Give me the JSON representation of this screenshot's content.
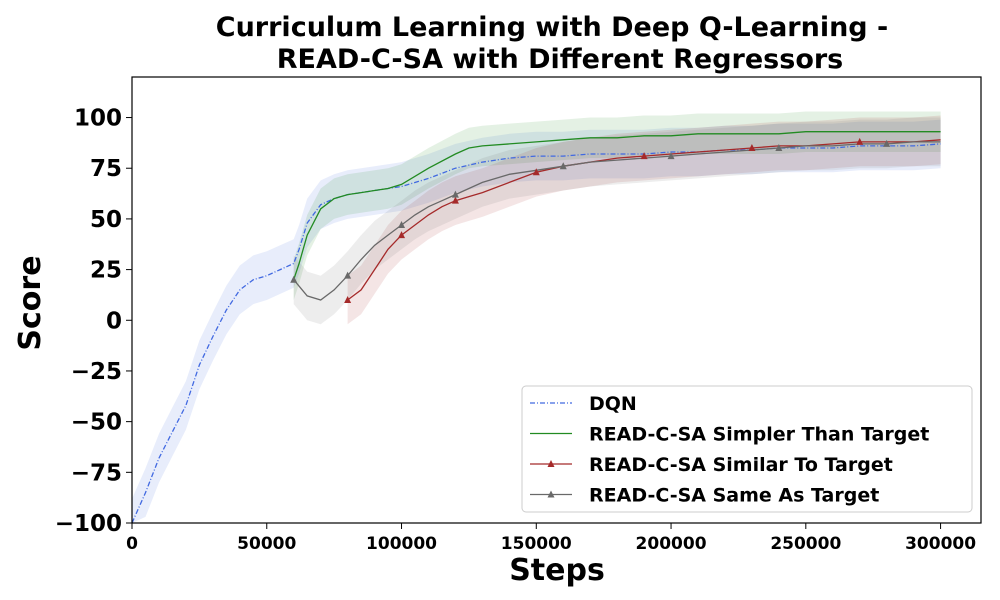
{
  "chart_data": {
    "type": "line",
    "title_lines": [
      "Curriculum Learning with Deep Q-Learning -",
      "READ-C-SA with Different Regressors"
    ],
    "xlabel": "Steps",
    "ylabel": "Score",
    "xlim": [
      0,
      315000
    ],
    "ylim": [
      -100,
      120
    ],
    "xticks": [
      0,
      50000,
      100000,
      150000,
      200000,
      250000,
      300000
    ],
    "yticks": [
      -100,
      -75,
      -50,
      -25,
      0,
      25,
      50,
      75,
      100
    ],
    "xtick_labels": [
      "0",
      "50000",
      "100000",
      "150000",
      "200000",
      "250000",
      "300000"
    ],
    "ytick_labels": [
      "−100",
      "−75",
      "−50",
      "−25",
      "0",
      "25",
      "50",
      "75",
      "100"
    ],
    "grid": false,
    "legend_position": "lower-right",
    "series": [
      {
        "name": "DQN",
        "color": "#4169e1",
        "style": "dashdot",
        "marker": "none",
        "band_width": 12,
        "points": [
          [
            0,
            -100
          ],
          [
            5000,
            -85
          ],
          [
            10000,
            -68
          ],
          [
            15000,
            -55
          ],
          [
            20000,
            -42
          ],
          [
            25000,
            -22
          ],
          [
            30000,
            -8
          ],
          [
            35000,
            5
          ],
          [
            40000,
            15
          ],
          [
            45000,
            20
          ],
          [
            50000,
            22
          ],
          [
            55000,
            25
          ],
          [
            60000,
            28
          ],
          [
            62000,
            35
          ],
          [
            65000,
            48
          ],
          [
            70000,
            57
          ],
          [
            75000,
            60
          ],
          [
            80000,
            62
          ],
          [
            85000,
            63
          ],
          [
            90000,
            64
          ],
          [
            95000,
            65
          ],
          [
            100000,
            66
          ],
          [
            110000,
            70
          ],
          [
            120000,
            75
          ],
          [
            130000,
            78
          ],
          [
            140000,
            80
          ],
          [
            150000,
            81
          ],
          [
            160000,
            81
          ],
          [
            170000,
            82
          ],
          [
            180000,
            82
          ],
          [
            190000,
            82
          ],
          [
            200000,
            83
          ],
          [
            210000,
            83
          ],
          [
            220000,
            84
          ],
          [
            230000,
            84
          ],
          [
            240000,
            85
          ],
          [
            250000,
            85
          ],
          [
            260000,
            85
          ],
          [
            270000,
            86
          ],
          [
            280000,
            86
          ],
          [
            290000,
            86
          ],
          [
            300000,
            87
          ]
        ]
      },
      {
        "name": "READ-C-SA Simpler Than Target",
        "color": "#228b22",
        "style": "solid",
        "marker": "none",
        "band_width": 10,
        "points": [
          [
            60000,
            20
          ],
          [
            62000,
            28
          ],
          [
            65000,
            42
          ],
          [
            70000,
            55
          ],
          [
            75000,
            60
          ],
          [
            80000,
            62
          ],
          [
            85000,
            63
          ],
          [
            90000,
            64
          ],
          [
            95000,
            65
          ],
          [
            100000,
            67
          ],
          [
            110000,
            75
          ],
          [
            120000,
            82
          ],
          [
            125000,
            85
          ],
          [
            130000,
            86
          ],
          [
            140000,
            87
          ],
          [
            150000,
            88
          ],
          [
            160000,
            89
          ],
          [
            170000,
            90
          ],
          [
            180000,
            90
          ],
          [
            190000,
            91
          ],
          [
            200000,
            91
          ],
          [
            210000,
            92
          ],
          [
            220000,
            92
          ],
          [
            230000,
            92
          ],
          [
            240000,
            92
          ],
          [
            250000,
            93
          ],
          [
            260000,
            93
          ],
          [
            270000,
            93
          ],
          [
            280000,
            93
          ],
          [
            290000,
            93
          ],
          [
            300000,
            93
          ]
        ]
      },
      {
        "name": "READ-C-SA Similar To Target",
        "color": "#a52a2a",
        "style": "solid",
        "marker": "triangle",
        "band_width": 12,
        "points": [
          [
            80000,
            10
          ],
          [
            85000,
            15
          ],
          [
            90000,
            25
          ],
          [
            95000,
            35
          ],
          [
            100000,
            42
          ],
          [
            105000,
            47
          ],
          [
            110000,
            52
          ],
          [
            115000,
            56
          ],
          [
            120000,
            59
          ],
          [
            125000,
            61
          ],
          [
            130000,
            63
          ],
          [
            140000,
            68
          ],
          [
            150000,
            73
          ],
          [
            160000,
            76
          ],
          [
            170000,
            78
          ],
          [
            180000,
            80
          ],
          [
            190000,
            81
          ],
          [
            200000,
            82
          ],
          [
            210000,
            83
          ],
          [
            220000,
            84
          ],
          [
            230000,
            85
          ],
          [
            240000,
            86
          ],
          [
            250000,
            86
          ],
          [
            260000,
            87
          ],
          [
            270000,
            88
          ],
          [
            280000,
            88
          ],
          [
            290000,
            88
          ],
          [
            300000,
            89
          ]
        ]
      },
      {
        "name": "READ-C-SA Same As Target",
        "color": "#696969",
        "style": "solid",
        "marker": "triangle",
        "band_width": 12,
        "points": [
          [
            60000,
            20
          ],
          [
            65000,
            12
          ],
          [
            70000,
            10
          ],
          [
            75000,
            15
          ],
          [
            80000,
            22
          ],
          [
            85000,
            30
          ],
          [
            90000,
            37
          ],
          [
            95000,
            42
          ],
          [
            100000,
            47
          ],
          [
            105000,
            52
          ],
          [
            110000,
            56
          ],
          [
            115000,
            59
          ],
          [
            120000,
            62
          ],
          [
            130000,
            68
          ],
          [
            140000,
            72
          ],
          [
            150000,
            74
          ],
          [
            160000,
            76
          ],
          [
            170000,
            78
          ],
          [
            180000,
            79
          ],
          [
            190000,
            80
          ],
          [
            200000,
            81
          ],
          [
            210000,
            82
          ],
          [
            220000,
            83
          ],
          [
            230000,
            84
          ],
          [
            240000,
            85
          ],
          [
            250000,
            86
          ],
          [
            260000,
            86
          ],
          [
            270000,
            87
          ],
          [
            280000,
            87
          ],
          [
            290000,
            88
          ],
          [
            300000,
            88
          ]
        ]
      }
    ]
  }
}
